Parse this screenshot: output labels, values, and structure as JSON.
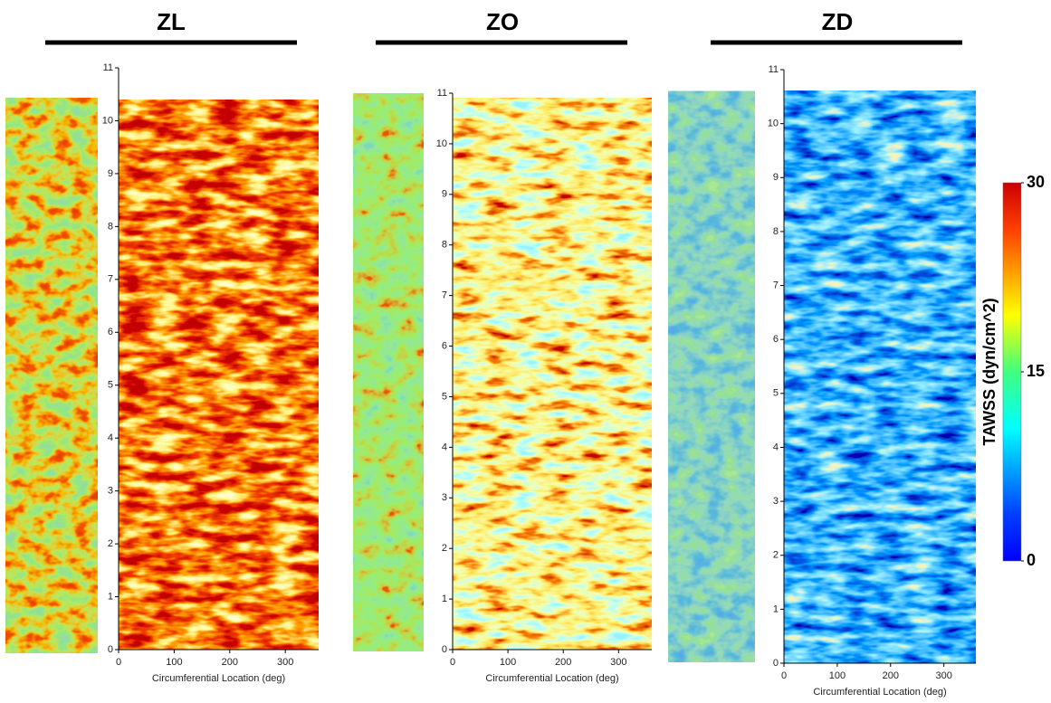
{
  "chart_data": [
    {
      "type": "heatmap",
      "title": "ZL",
      "xlabel": "Circumferential Location (deg)",
      "xlim": [
        0,
        360
      ],
      "xticks": [
        0,
        100,
        200,
        300
      ],
      "ylim": [
        0,
        11
      ],
      "yticks": [
        0,
        1,
        2,
        3,
        4,
        5,
        6,
        7,
        8,
        9,
        10,
        11
      ]
    },
    {
      "type": "heatmap",
      "title": "ZO",
      "xlabel": "Circumferential Location (deg)",
      "xlim": [
        0,
        360
      ],
      "xticks": [
        0,
        100,
        200,
        300
      ],
      "ylim": [
        0,
        11
      ],
      "yticks": [
        0,
        1,
        2,
        3,
        4,
        5,
        6,
        7,
        8,
        9,
        10,
        11
      ]
    },
    {
      "type": "heatmap",
      "title": "ZD",
      "xlabel": "Circumferential Location (deg)",
      "xlim": [
        0,
        360
      ],
      "xticks": [
        0,
        100,
        200,
        300
      ],
      "ylim": [
        0,
        11
      ],
      "yticks": [
        0,
        1,
        2,
        3,
        4,
        5,
        6,
        7,
        8,
        9,
        10,
        11
      ]
    }
  ],
  "colorbar": {
    "label": "TAWSS (dyn/cm^2)",
    "lim": [
      0,
      30
    ],
    "ticks": [
      0,
      15,
      30
    ]
  }
}
